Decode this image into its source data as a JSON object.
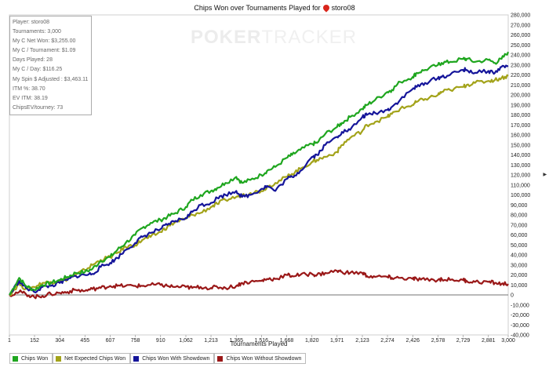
{
  "header": {
    "title_prefix": "Chips Won over Tournaments Played for",
    "player_name": "storo08",
    "icon": "pokerstars-icon"
  },
  "watermark": {
    "bold": "POKER",
    "light": "TRACKER"
  },
  "stats": [
    "Player: storo08",
    "Tournaments: 3,000",
    "My C Net Won: $3,255.00",
    "My C / Tournament: $1.09",
    "Days Played: 28",
    "My C / Day: $116.25",
    "My Spin $ Adjusted : $3,463.11",
    "ITM %: 38.70",
    "EV ITM: 38.19",
    "ChipsEV/tourney: 73"
  ],
  "legend": [
    {
      "label": "Chips Won",
      "color": "#1fa61f"
    },
    {
      "label": "Net Expected Chips Won",
      "color": "#a3a31a"
    },
    {
      "label": "Chips Won With Showdown",
      "color": "#15159a"
    },
    {
      "label": "Chips Won Without Showdown",
      "color": "#9a1818"
    }
  ],
  "chart_data": {
    "type": "line",
    "xlabel": "Tournaments Played",
    "ylabel": "",
    "xlim": [
      1,
      3000
    ],
    "ylim": [
      -40000,
      280000
    ],
    "x_ticks": [
      "1",
      "152",
      "304",
      "455",
      "607",
      "758",
      "910",
      "1,062",
      "1,213",
      "1,365",
      "1,516",
      "1,668",
      "1,820",
      "1,971",
      "2,123",
      "2,274",
      "2,426",
      "2,578",
      "2,729",
      "2,881",
      "3,000"
    ],
    "x_tick_values": [
      1,
      152,
      304,
      455,
      607,
      758,
      910,
      1062,
      1213,
      1365,
      1516,
      1668,
      1820,
      1971,
      2123,
      2274,
      2426,
      2578,
      2729,
      2881,
      3000
    ],
    "y_ticks": [
      "-40,000",
      "-30,000",
      "-20,000",
      "-10,000",
      "0",
      "10,000",
      "20,000",
      "30,000",
      "40,000",
      "50,000",
      "60,000",
      "70,000",
      "80,000",
      "90,000",
      "100,000",
      "110,000",
      "120,000",
      "130,000",
      "140,000",
      "150,000",
      "160,000",
      "170,000",
      "180,000",
      "190,000",
      "200,000",
      "210,000",
      "220,000",
      "230,000",
      "240,000",
      "250,000",
      "260,000",
      "270,000",
      "280,000"
    ],
    "y_tick_values": [
      -40000,
      -30000,
      -20000,
      -10000,
      0,
      10000,
      20000,
      30000,
      40000,
      50000,
      60000,
      70000,
      80000,
      90000,
      100000,
      110000,
      120000,
      130000,
      140000,
      150000,
      160000,
      170000,
      180000,
      190000,
      200000,
      210000,
      220000,
      230000,
      240000,
      250000,
      260000,
      270000,
      280000
    ],
    "grid": false,
    "legend_position": "bottom",
    "x": [
      1,
      60,
      100,
      150,
      200,
      250,
      304,
      350,
      400,
      455,
      500,
      550,
      607,
      650,
      700,
      758,
      800,
      850,
      910,
      950,
      1000,
      1062,
      1100,
      1150,
      1213,
      1250,
      1300,
      1365,
      1400,
      1450,
      1516,
      1550,
      1600,
      1668,
      1700,
      1750,
      1820,
      1850,
      1900,
      1971,
      2000,
      2050,
      2123,
      2150,
      2200,
      2274,
      2300,
      2350,
      2426,
      2450,
      2500,
      2578,
      2600,
      2650,
      2729,
      2750,
      2800,
      2881,
      2920,
      2960,
      3000
    ],
    "series": [
      {
        "name": "Chips Won",
        "color": "#1fa61f",
        "values": [
          0,
          17000,
          9000,
          5000,
          10000,
          12000,
          15000,
          18000,
          22000,
          23000,
          26000,
          34000,
          38000,
          45000,
          52000,
          60000,
          67000,
          72000,
          75000,
          78000,
          82000,
          88000,
          95000,
          100000,
          104000,
          107000,
          112000,
          118000,
          112000,
          115000,
          120000,
          124000,
          128000,
          137000,
          140000,
          145000,
          151000,
          152000,
          161000,
          168000,
          172000,
          178000,
          186000,
          190000,
          195000,
          203000,
          205000,
          213000,
          218000,
          222000,
          225000,
          230000,
          232000,
          233000,
          236000,
          236000,
          233000,
          235000,
          232000,
          236000,
          243000
        ]
      },
      {
        "name": "Net Expected Chips Won",
        "color": "#a3a31a",
        "values": [
          0,
          11000,
          6000,
          8000,
          12000,
          13000,
          14000,
          16000,
          20000,
          25000,
          30000,
          35000,
          38000,
          42000,
          48000,
          50000,
          55000,
          58000,
          63000,
          68000,
          73000,
          76000,
          80000,
          82000,
          88000,
          91000,
          95000,
          98000,
          100000,
          102000,
          104000,
          108000,
          112000,
          118000,
          121000,
          126000,
          133000,
          135000,
          138000,
          143000,
          150000,
          157000,
          164000,
          170000,
          173000,
          178000,
          181000,
          186000,
          190000,
          193000,
          196000,
          200000,
          203000,
          205000,
          208000,
          210000,
          212000,
          214000,
          215000,
          217000,
          219000
        ]
      },
      {
        "name": "Chips Won With Showdown",
        "color": "#15159a",
        "values": [
          0,
          14000,
          7000,
          3000,
          8000,
          9000,
          12000,
          15000,
          19000,
          20000,
          21000,
          28000,
          32000,
          37000,
          45000,
          52000,
          58000,
          62000,
          66000,
          70000,
          74000,
          77000,
          83000,
          90000,
          92000,
          97000,
          100000,
          104000,
          98000,
          100000,
          106000,
          109000,
          104000,
          116000,
          118000,
          124000,
          138000,
          140000,
          150000,
          158000,
          163000,
          165000,
          178000,
          180000,
          182000,
          185000,
          188000,
          195000,
          206000,
          208000,
          212000,
          217000,
          218000,
          220000,
          225000,
          225000,
          222000,
          224000,
          222000,
          228000,
          229000
        ]
      },
      {
        "name": "Chips Won Without Showdown",
        "color": "#9a1818",
        "values": [
          0,
          3000,
          1000,
          -2000,
          -1000,
          1000,
          2000,
          3000,
          5000,
          4000,
          6000,
          7000,
          9000,
          9000,
          9000,
          9000,
          9000,
          10000,
          10000,
          9000,
          8000,
          8000,
          7000,
          8000,
          7000,
          8000,
          7000,
          9000,
          12000,
          13000,
          14000,
          16000,
          16000,
          20000,
          19000,
          20000,
          21000,
          20000,
          22000,
          24000,
          23000,
          22000,
          22000,
          19000,
          18000,
          18000,
          17000,
          17000,
          16000,
          16000,
          15000,
          15000,
          16000,
          15000,
          15000,
          14000,
          13000,
          13000,
          12000,
          11000,
          11000
        ]
      }
    ]
  }
}
